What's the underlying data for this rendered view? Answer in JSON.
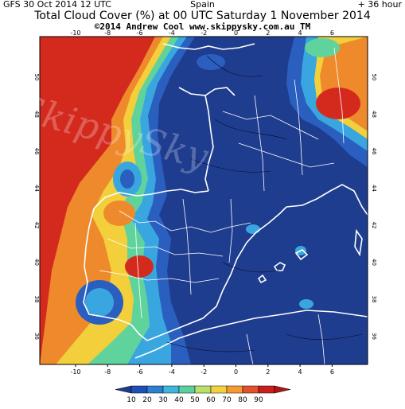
{
  "header": {
    "model_run": "GFS 30 Oct 2014 12 UTC",
    "region": "Spain",
    "forecast_hour": "+ 36 hour",
    "title": "Total Cloud Cover (%) at 00 UTC Saturday 1 November 2014",
    "credit": "©2014 Andrew Cool  www.skippysky.com.au  TM",
    "watermark": "SkippySky"
  },
  "axes": {
    "lon_ticks": [
      "-10",
      "-8",
      "-6",
      "-4",
      "-2",
      "0",
      "2",
      "4",
      "6"
    ],
    "lat_ticks_left": [
      "50",
      "48",
      "46",
      "44",
      "42",
      "40",
      "38",
      "36"
    ],
    "lat_ticks_right": [
      "50",
      "48",
      "46",
      "44",
      "42",
      "40",
      "38",
      "36"
    ]
  },
  "colorbar": {
    "labels": [
      "10",
      "20",
      "30",
      "40",
      "50",
      "60",
      "70",
      "80",
      "90"
    ],
    "colors": [
      "#1e3c8c",
      "#1f4fb4",
      "#2e7fd0",
      "#3cb6dc",
      "#5ccfa0",
      "#b8e06a",
      "#f2d23c",
      "#f59a30",
      "#e4502a",
      "#c81e1e",
      "#b01414"
    ]
  },
  "map_colors": {
    "low": "#1f3d8f",
    "mid_low": "#2a5fc0",
    "mid": "#3aa6df",
    "mid_high": "#60d39c",
    "high": "#f2cf3b",
    "very_high": "#ef8a2c",
    "max": "#d42a1e",
    "coast": "#ffffff",
    "contour": "#0a0a2a"
  }
}
